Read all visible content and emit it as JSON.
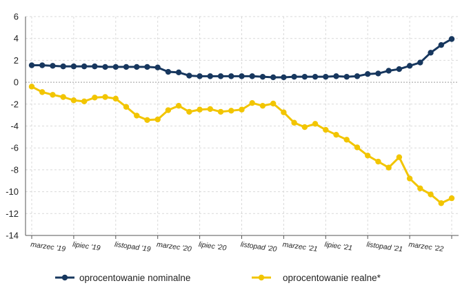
{
  "chart_data": {
    "type": "line",
    "title": "",
    "xlabel": "",
    "ylabel": "",
    "ylim": [
      -14,
      6
    ],
    "yticks": [
      6,
      4,
      2,
      0,
      -2,
      -4,
      -6,
      -8,
      -10,
      -12,
      -14
    ],
    "xtick_labels": [
      "marzec '19",
      "lipiec '19",
      "listopad '19",
      "marzec '20",
      "lipiec '20",
      "listopad '20",
      "marzec '21",
      "lipiec '21",
      "listopad '21",
      "marzec '22"
    ],
    "n_points": 41,
    "grid": true,
    "legend_position": "bottom",
    "series": [
      {
        "name": "oprocentowanie nominalne",
        "color": "#17375e",
        "values": [
          1.55,
          1.55,
          1.5,
          1.45,
          1.45,
          1.45,
          1.45,
          1.4,
          1.4,
          1.4,
          1.4,
          1.4,
          1.35,
          0.95,
          0.9,
          0.6,
          0.55,
          0.55,
          0.55,
          0.55,
          0.55,
          0.55,
          0.5,
          0.45,
          0.45,
          0.5,
          0.5,
          0.5,
          0.5,
          0.55,
          0.5,
          0.55,
          0.75,
          0.8,
          1.05,
          1.2,
          1.5,
          1.8,
          2.7,
          3.4,
          3.95
        ]
      },
      {
        "name": "oprocentowanie realne*",
        "color": "#f2c500",
        "values": [
          -0.4,
          -0.9,
          -1.15,
          -1.35,
          -1.65,
          -1.75,
          -1.4,
          -1.35,
          -1.5,
          -2.25,
          -3.05,
          -3.45,
          -3.4,
          -2.55,
          -2.15,
          -2.7,
          -2.5,
          -2.45,
          -2.7,
          -2.6,
          -2.5,
          -1.9,
          -2.15,
          -1.95,
          -2.75,
          -3.7,
          -4.1,
          -3.8,
          -4.35,
          -4.8,
          -5.25,
          -5.95,
          -6.7,
          -7.25,
          -7.8,
          -6.85,
          -8.8,
          -9.7,
          -10.25,
          -11.05,
          -10.6
        ]
      }
    ]
  }
}
